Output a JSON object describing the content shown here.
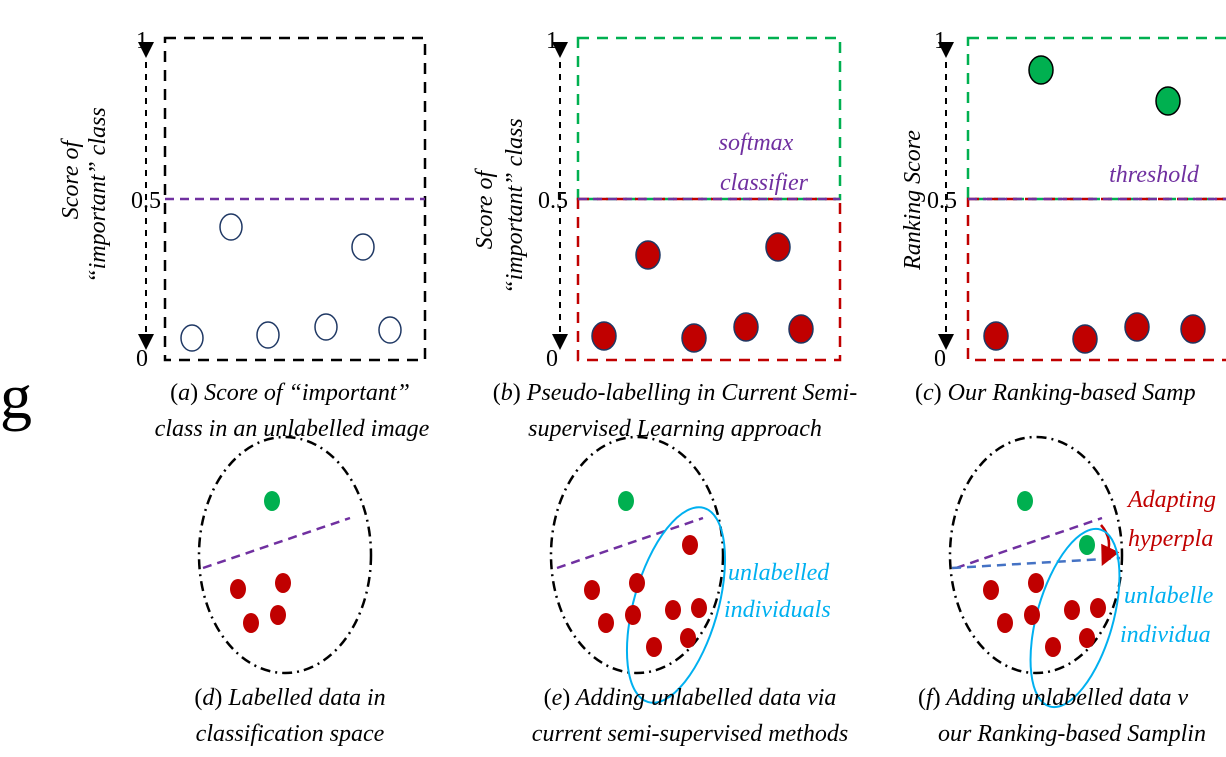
{
  "colors": {
    "black": "#000000",
    "purple": "#7030A0",
    "green": "#00B050",
    "red": "#C00000",
    "navy": "#1F3864",
    "cyan": "#00B0F0",
    "blue_dashed": "#4472C4"
  },
  "edge_glyph": "g",
  "panels": {
    "a": {
      "ylabel_line1": "Score of",
      "ylabel_line2": "“important” class",
      "tick_top": "1",
      "tick_mid": "0.5",
      "tick_bottom": "0",
      "caption_tag": "a",
      "caption_line1": " Score of “important”",
      "caption_line2": "class in an unlabelled image"
    },
    "b": {
      "ylabel_line1": "Score of",
      "ylabel_line2": "“important” class",
      "tick_top": "1",
      "tick_mid": "0.5",
      "tick_bottom": "0",
      "threshold_label_line1": "softmax",
      "threshold_label_line2": "classifier",
      "caption_tag": "b",
      "caption_line1": " Pseudo-labelling in Current Semi-",
      "caption_line2": "supervised Learning approach"
    },
    "c": {
      "ylabel": "Ranking Score",
      "tick_top": "1",
      "tick_mid": "0.5",
      "tick_bottom": "0",
      "threshold_label": "threshold",
      "caption_tag": "c",
      "caption_line1": " Our Ranking-based Samp"
    },
    "d": {
      "caption_tag": "d",
      "caption_line1": " Labelled data in",
      "caption_line2": "classification space"
    },
    "e": {
      "annotation_line1": "unlabelled",
      "annotation_line2": "individuals",
      "caption_tag": "e",
      "caption_line1": " Adding unlabelled data via",
      "caption_line2": "current semi-supervised methods"
    },
    "f": {
      "adapting_line1": "Adapting",
      "adapting_line2": "hyperpla",
      "annotation_line1": "unlabelle",
      "annotation_line2": "individua",
      "caption_tag": "f",
      "caption_line1": " Adding unlabelled data v",
      "caption_line2": "our Ranking-based Samplin"
    }
  }
}
